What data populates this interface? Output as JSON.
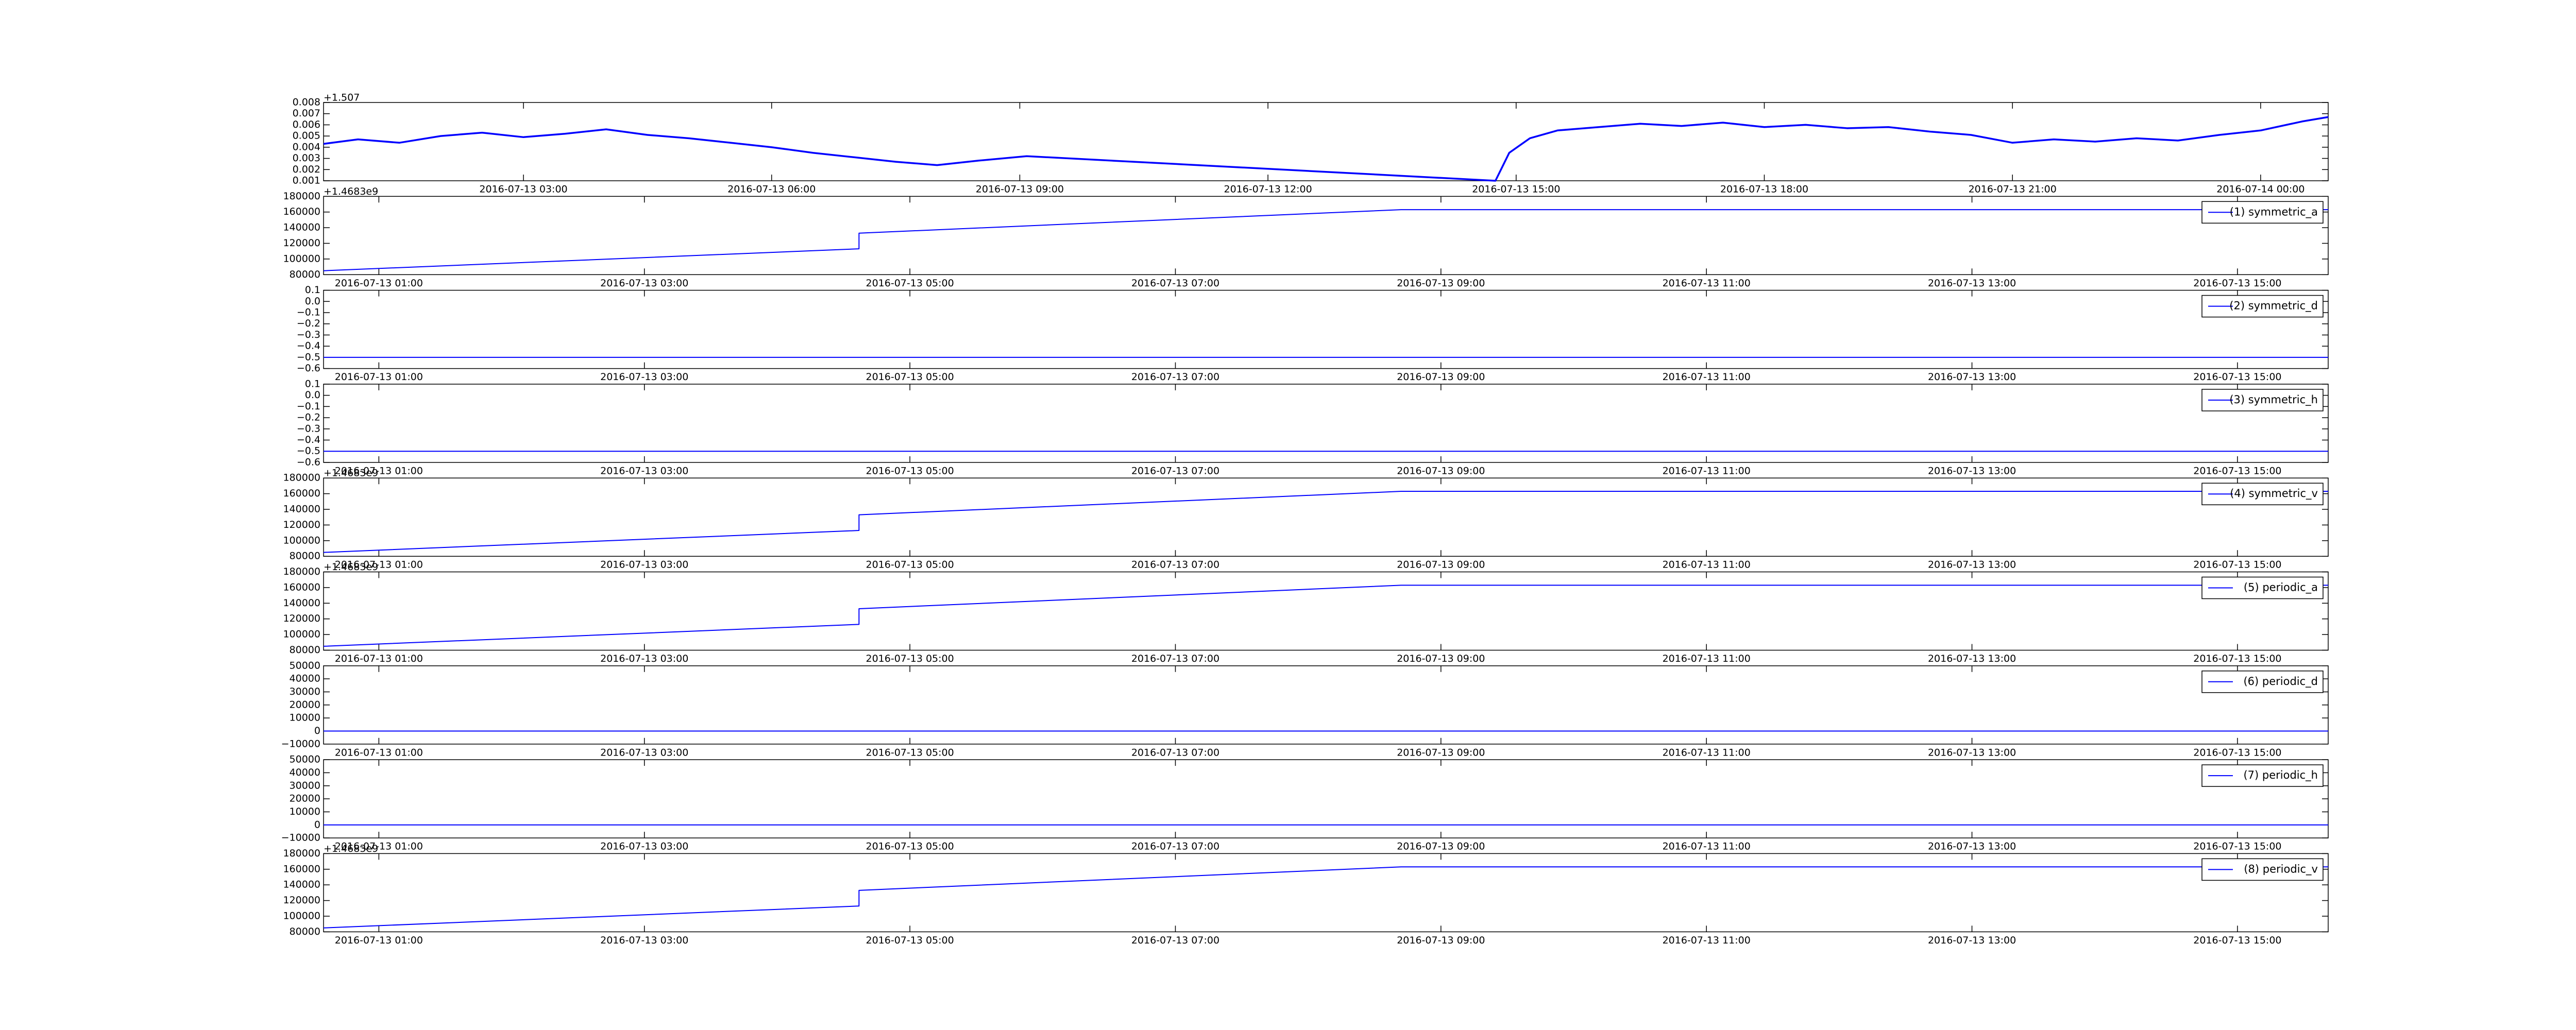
{
  "chart_data": [
    {
      "type": "line",
      "y_offset": "+1.507",
      "x": [
        "2016-07-13 00:35",
        "2016-07-13 01:00",
        "2016-07-13 01:30",
        "2016-07-13 02:00",
        "2016-07-13 02:30",
        "2016-07-13 03:00",
        "2016-07-13 03:30",
        "2016-07-13 04:00",
        "2016-07-13 04:30",
        "2016-07-13 05:00",
        "2016-07-13 05:30",
        "2016-07-13 06:00",
        "2016-07-13 06:30",
        "2016-07-13 07:00",
        "2016-07-13 07:30",
        "2016-07-13 08:00",
        "2016-07-13 08:30",
        "2016-07-13 09:05",
        "2016-07-13 14:45",
        "2016-07-13 14:55",
        "2016-07-13 15:10",
        "2016-07-13 15:30",
        "2016-07-13 16:00",
        "2016-07-13 16:30",
        "2016-07-13 17:00",
        "2016-07-13 17:30",
        "2016-07-13 18:00",
        "2016-07-13 18:30",
        "2016-07-13 19:00",
        "2016-07-13 19:30",
        "2016-07-13 20:00",
        "2016-07-13 20:30",
        "2016-07-13 21:00",
        "2016-07-13 21:30",
        "2016-07-13 22:00",
        "2016-07-13 22:30",
        "2016-07-13 23:00",
        "2016-07-13 23:30",
        "2016-07-14 00:00",
        "2016-07-14 00:30",
        "2016-07-14 00:49"
      ],
      "series": [
        {
          "color": "#0000ff",
          "values": [
            0.0043,
            0.0047,
            0.0044,
            0.005,
            0.0053,
            0.0049,
            0.0052,
            0.0056,
            0.0051,
            0.0048,
            0.0044,
            0.004,
            0.0035,
            0.0031,
            0.0027,
            0.0024,
            0.0028,
            0.0032,
            0.001,
            0.0035,
            0.0048,
            0.0055,
            0.0058,
            0.0061,
            0.0059,
            0.0062,
            0.0058,
            0.006,
            0.0057,
            0.0058,
            0.0054,
            0.0051,
            0.0044,
            0.0047,
            0.0045,
            0.0048,
            0.0046,
            0.0051,
            0.0055,
            0.0063,
            0.0067
          ]
        }
      ],
      "xlim": [
        "2016-07-13 00:35",
        "2016-07-14 00:49"
      ],
      "xticks": [
        "2016-07-13 03:00",
        "2016-07-13 06:00",
        "2016-07-13 09:00",
        "2016-07-13 12:00",
        "2016-07-13 15:00",
        "2016-07-13 18:00",
        "2016-07-13 21:00",
        "2016-07-14 00:00"
      ],
      "ylim": [
        0.001,
        0.008
      ],
      "yticks": [
        0.001,
        0.002,
        0.003,
        0.004,
        0.005,
        0.006,
        0.007,
        0.008
      ]
    },
    {
      "type": "line",
      "y_offset": "+1.4683e9",
      "legend": "upper right",
      "x": [
        "2016-07-13 00:35",
        "2016-07-13 04:37",
        "2016-07-13 04:37",
        "2016-07-13 08:42",
        "2016-07-13 15:41"
      ],
      "series": [
        {
          "name": "(1) symmetric_a",
          "color": "#0000ff",
          "values": [
            85000,
            113000,
            133000,
            163000,
            163000
          ]
        }
      ],
      "xlim": [
        "2016-07-13 00:35",
        "2016-07-13 15:41"
      ],
      "xticks": [
        "2016-07-13 01:00",
        "2016-07-13 03:00",
        "2016-07-13 05:00",
        "2016-07-13 07:00",
        "2016-07-13 09:00",
        "2016-07-13 11:00",
        "2016-07-13 13:00",
        "2016-07-13 15:00"
      ],
      "ylim": [
        80000,
        180000
      ],
      "yticks": [
        80000,
        100000,
        120000,
        140000,
        160000,
        180000
      ]
    },
    {
      "type": "line",
      "legend": "upper right",
      "x": [
        "2016-07-13 00:35",
        "2016-07-13 15:41"
      ],
      "series": [
        {
          "name": "(2) symmetric_d",
          "color": "#0000ff",
          "values": [
            -0.5,
            -0.5
          ]
        }
      ],
      "xlim": [
        "2016-07-13 00:35",
        "2016-07-13 15:41"
      ],
      "xticks": [
        "2016-07-13 01:00",
        "2016-07-13 03:00",
        "2016-07-13 05:00",
        "2016-07-13 07:00",
        "2016-07-13 09:00",
        "2016-07-13 11:00",
        "2016-07-13 13:00",
        "2016-07-13 15:00"
      ],
      "ylim": [
        -0.6,
        0.1
      ],
      "yticks": [
        {
          "value": -0.6,
          "label": "−0.6"
        },
        {
          "value": -0.5,
          "label": "−0.5"
        },
        {
          "value": -0.4,
          "label": "−0.4"
        },
        {
          "value": -0.3,
          "label": "−0.3"
        },
        {
          "value": -0.2,
          "label": "−0.2"
        },
        {
          "value": -0.1,
          "label": "−0.1"
        },
        {
          "value": 0,
          "label": "0.0"
        },
        0.1
      ]
    },
    {
      "type": "line",
      "legend": "upper right",
      "x": [
        "2016-07-13 00:35",
        "2016-07-13 15:41"
      ],
      "series": [
        {
          "name": "(3) symmetric_h",
          "color": "#0000ff",
          "values": [
            -0.5,
            -0.5
          ]
        }
      ],
      "xlim": [
        "2016-07-13 00:35",
        "2016-07-13 15:41"
      ],
      "xticks": [
        "2016-07-13 01:00",
        "2016-07-13 03:00",
        "2016-07-13 05:00",
        "2016-07-13 07:00",
        "2016-07-13 09:00",
        "2016-07-13 11:00",
        "2016-07-13 13:00",
        "2016-07-13 15:00"
      ],
      "ylim": [
        -0.6,
        0.1
      ],
      "yticks": [
        {
          "value": -0.6,
          "label": "−0.6"
        },
        {
          "value": -0.5,
          "label": "−0.5"
        },
        {
          "value": -0.4,
          "label": "−0.4"
        },
        {
          "value": -0.3,
          "label": "−0.3"
        },
        {
          "value": -0.2,
          "label": "−0.2"
        },
        {
          "value": -0.1,
          "label": "−0.1"
        },
        {
          "value": 0,
          "label": "0.0"
        },
        0.1
      ]
    },
    {
      "type": "line",
      "y_offset": "+1.4683e9",
      "legend": "upper right",
      "x": [
        "2016-07-13 00:35",
        "2016-07-13 04:37",
        "2016-07-13 04:37",
        "2016-07-13 08:42",
        "2016-07-13 15:41"
      ],
      "series": [
        {
          "name": "(4) symmetric_v",
          "color": "#0000ff",
          "values": [
            85000,
            113000,
            133000,
            163000,
            163000
          ]
        }
      ],
      "xlim": [
        "2016-07-13 00:35",
        "2016-07-13 15:41"
      ],
      "xticks": [
        "2016-07-13 01:00",
        "2016-07-13 03:00",
        "2016-07-13 05:00",
        "2016-07-13 07:00",
        "2016-07-13 09:00",
        "2016-07-13 11:00",
        "2016-07-13 13:00",
        "2016-07-13 15:00"
      ],
      "ylim": [
        80000,
        180000
      ],
      "yticks": [
        80000,
        100000,
        120000,
        140000,
        160000,
        180000
      ]
    },
    {
      "type": "line",
      "y_offset": "+1.4683e9",
      "legend": "upper right",
      "x": [
        "2016-07-13 00:35",
        "2016-07-13 04:37",
        "2016-07-13 04:37",
        "2016-07-13 08:42",
        "2016-07-13 15:41"
      ],
      "series": [
        {
          "name": "(5) periodic_a",
          "color": "#0000ff",
          "values": [
            85000,
            113000,
            133000,
            163000,
            163000
          ]
        }
      ],
      "xlim": [
        "2016-07-13 00:35",
        "2016-07-13 15:41"
      ],
      "xticks": [
        "2016-07-13 01:00",
        "2016-07-13 03:00",
        "2016-07-13 05:00",
        "2016-07-13 07:00",
        "2016-07-13 09:00",
        "2016-07-13 11:00",
        "2016-07-13 13:00",
        "2016-07-13 15:00"
      ],
      "ylim": [
        80000,
        180000
      ],
      "yticks": [
        80000,
        100000,
        120000,
        140000,
        160000,
        180000
      ]
    },
    {
      "type": "line",
      "legend": "upper right",
      "x": [
        "2016-07-13 00:35",
        "2016-07-13 15:41"
      ],
      "series": [
        {
          "name": "(6) periodic_d",
          "color": "#0000ff",
          "values": [
            0,
            0
          ]
        }
      ],
      "xlim": [
        "2016-07-13 00:35",
        "2016-07-13 15:41"
      ],
      "xticks": [
        "2016-07-13 01:00",
        "2016-07-13 03:00",
        "2016-07-13 05:00",
        "2016-07-13 07:00",
        "2016-07-13 09:00",
        "2016-07-13 11:00",
        "2016-07-13 13:00",
        "2016-07-13 15:00"
      ],
      "ylim": [
        -10000,
        50000
      ],
      "yticks": [
        {
          "value": -10000,
          "label": "−10000"
        },
        0,
        10000,
        20000,
        30000,
        40000,
        50000
      ]
    },
    {
      "type": "line",
      "legend": "upper right",
      "x": [
        "2016-07-13 00:35",
        "2016-07-13 15:41"
      ],
      "series": [
        {
          "name": "(7) periodic_h",
          "color": "#0000ff",
          "values": [
            0,
            0
          ]
        }
      ],
      "xlim": [
        "2016-07-13 00:35",
        "2016-07-13 15:41"
      ],
      "xticks": [
        "2016-07-13 01:00",
        "2016-07-13 03:00",
        "2016-07-13 05:00",
        "2016-07-13 07:00",
        "2016-07-13 09:00",
        "2016-07-13 11:00",
        "2016-07-13 13:00",
        "2016-07-13 15:00"
      ],
      "ylim": [
        -10000,
        50000
      ],
      "yticks": [
        {
          "value": -10000,
          "label": "−10000"
        },
        0,
        10000,
        20000,
        30000,
        40000,
        50000
      ]
    },
    {
      "type": "line",
      "y_offset": "+1.4683e9",
      "legend": "upper right",
      "x": [
        "2016-07-13 00:35",
        "2016-07-13 04:37",
        "2016-07-13 04:37",
        "2016-07-13 08:42",
        "2016-07-13 15:41"
      ],
      "series": [
        {
          "name": "(8) periodic_v",
          "color": "#0000ff",
          "values": [
            85000,
            113000,
            133000,
            163000,
            163000
          ]
        }
      ],
      "xlim": [
        "2016-07-13 00:35",
        "2016-07-13 15:41"
      ],
      "xticks": [
        "2016-07-13 01:00",
        "2016-07-13 03:00",
        "2016-07-13 05:00",
        "2016-07-13 07:00",
        "2016-07-13 09:00",
        "2016-07-13 11:00",
        "2016-07-13 13:00",
        "2016-07-13 15:00"
      ],
      "ylim": [
        80000,
        180000
      ],
      "yticks": [
        80000,
        100000,
        120000,
        140000,
        160000,
        180000
      ]
    }
  ]
}
